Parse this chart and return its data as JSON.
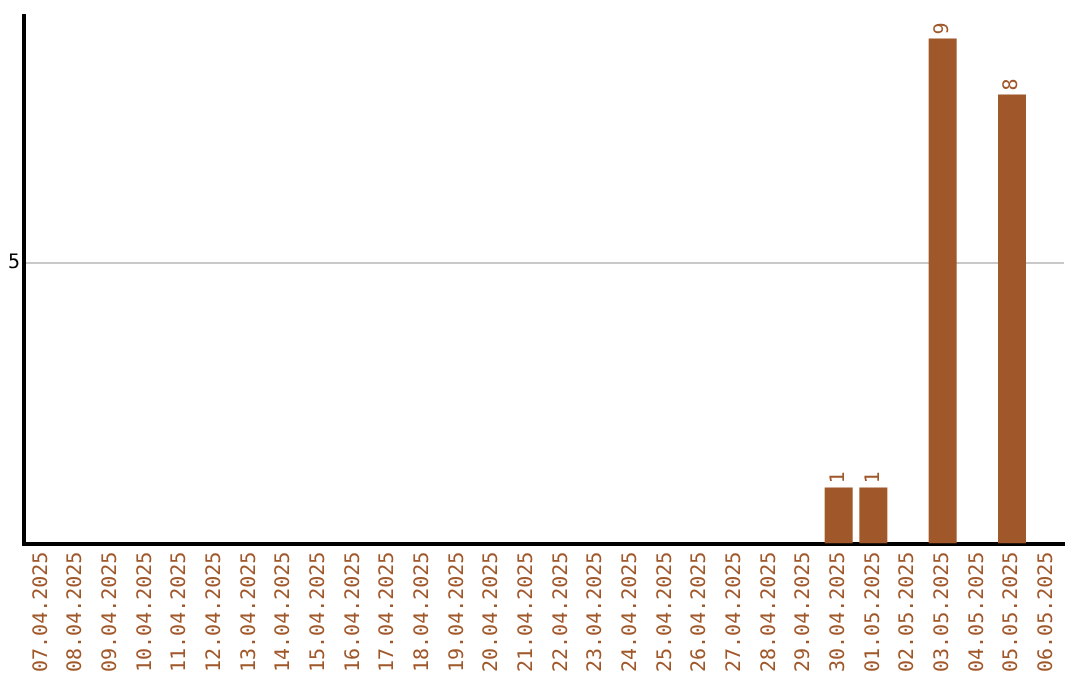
{
  "chart_data": {
    "type": "bar",
    "categories": [
      "07.04.2025",
      "08.04.2025",
      "09.04.2025",
      "10.04.2025",
      "11.04.2025",
      "12.04.2025",
      "13.04.2025",
      "14.04.2025",
      "15.04.2025",
      "16.04.2025",
      "17.04.2025",
      "18.04.2025",
      "19.04.2025",
      "20.04.2025",
      "21.04.2025",
      "22.04.2025",
      "23.04.2025",
      "24.04.2025",
      "25.04.2025",
      "26.04.2025",
      "27.04.2025",
      "28.04.2025",
      "29.04.2025",
      "30.04.2025",
      "01.05.2025",
      "02.05.2025",
      "03.05.2025",
      "04.05.2025",
      "05.05.2025",
      "06.05.2025"
    ],
    "values": [
      null,
      null,
      null,
      null,
      null,
      null,
      null,
      null,
      null,
      null,
      null,
      null,
      null,
      null,
      null,
      null,
      null,
      null,
      null,
      null,
      null,
      null,
      null,
      1,
      1,
      null,
      9,
      null,
      8,
      null
    ],
    "color": "#a0572a",
    "ylim": [
      0,
      9.4
    ],
    "yticks": [
      5
    ],
    "grid": "y",
    "legend": false,
    "data_labels": true
  }
}
